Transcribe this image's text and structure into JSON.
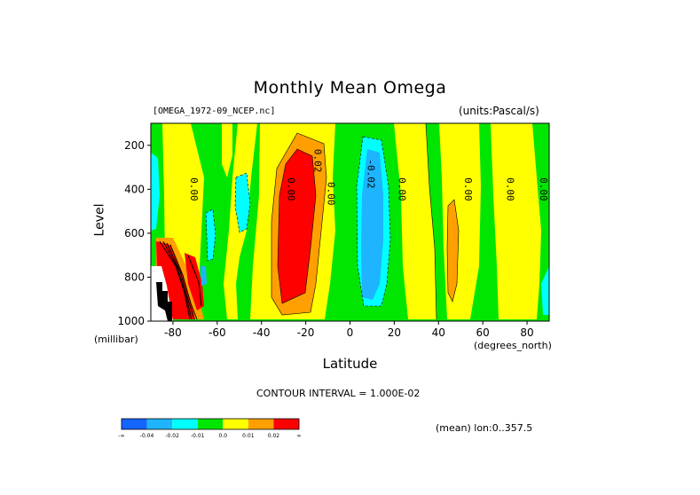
{
  "chart_data": {
    "type": "heatmap",
    "title": "Monthly Mean Omega",
    "file_label": "[OMEGA_1972-09_NCEP.nc]",
    "units_label": "(units:Pascal/s)",
    "xlabel": "Latitude",
    "x_units": "(degrees_north)",
    "ylabel": "Level",
    "y_units": "(millibar)",
    "xlim": [
      -90,
      90
    ],
    "ylim": [
      1000,
      100
    ],
    "x_ticks": [
      -80,
      -60,
      -40,
      -20,
      0,
      20,
      40,
      60,
      80
    ],
    "y_ticks": [
      200,
      400,
      600,
      800,
      1000
    ],
    "contour_labels": [
      "0.00",
      "0.00",
      "0.02",
      "0.00",
      "-0.02",
      "0.00",
      "0.00",
      "0.00",
      "0.00"
    ],
    "contour_interval_text": "CONTOUR INTERVAL = 1.000E-02",
    "mean_text": "(mean) lon:0..357.5",
    "colorbar": {
      "colors": [
        "#1464ff",
        "#1eb4ff",
        "#00ffff",
        "#00e600",
        "#ffff00",
        "#ffa000",
        "#ff0000"
      ],
      "labels": [
        "-∞",
        "-0.04",
        "-0.02",
        "-0.01",
        "0.0",
        "0.01",
        "0.02",
        "∞"
      ]
    }
  }
}
